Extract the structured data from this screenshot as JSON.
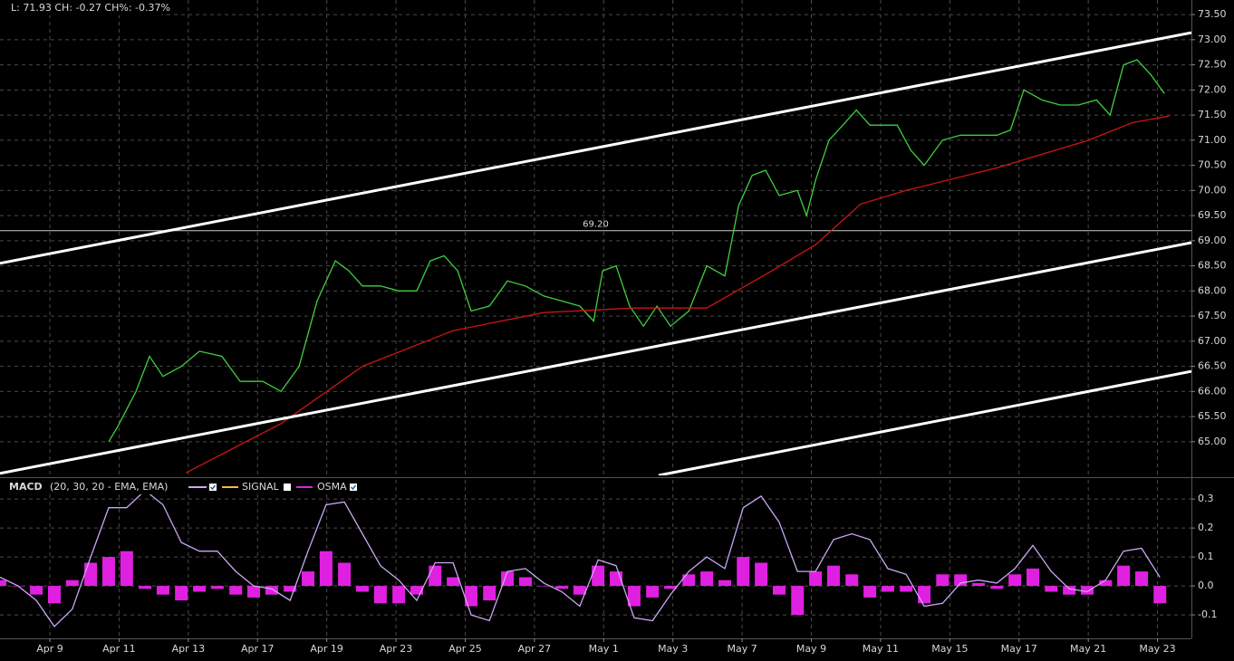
{
  "chart_data": [
    {
      "type": "line",
      "title": "L: 71.93 CH: -0.27 CH%: -0.37%",
      "xlim": [
        -1.44,
        32.98
      ],
      "ylim": [
        64.33,
        73.79
      ],
      "yticks": [
        {
          "value": 65,
          "label": "65.00"
        },
        {
          "value": 65.5,
          "label": "65.50"
        },
        {
          "value": 66,
          "label": "66.00"
        },
        {
          "value": 66.5,
          "label": "66.50"
        },
        {
          "value": 67,
          "label": "67.00"
        },
        {
          "value": 67.5,
          "label": "67.50"
        },
        {
          "value": 68,
          "label": "68.00"
        },
        {
          "value": 68.5,
          "label": "68.50"
        },
        {
          "value": 69,
          "label": "69.00"
        },
        {
          "value": 69.5,
          "label": "69.50"
        },
        {
          "value": 70,
          "label": "70.00"
        },
        {
          "value": 70.5,
          "label": "70.50"
        },
        {
          "value": 71,
          "label": "71.00"
        },
        {
          "value": 71.5,
          "label": "71.50"
        },
        {
          "value": 72,
          "label": "72.00"
        },
        {
          "value": 72.5,
          "label": "72.50"
        },
        {
          "value": 73,
          "label": "73.00"
        },
        {
          "value": 73.5,
          "label": "73.50"
        }
      ],
      "grid": true,
      "hlines": [
        {
          "value": 69.2,
          "label": "69.20",
          "color": "#cccccc"
        }
      ],
      "series": [
        {
          "kind": "line",
          "color": "#3fcf3f",
          "x": [
            1.7,
            1.96,
            2.49,
            2.88,
            3.27,
            3.8,
            4.32,
            4.97,
            5.5,
            6.15,
            6.68,
            7.2,
            7.72,
            8.25,
            8.64,
            9.03,
            9.55,
            10.08,
            10.6,
            10.99,
            11.39,
            11.78,
            12.17,
            12.7,
            13.22,
            13.74,
            14.27,
            14.79,
            15.31,
            15.71,
            15.97,
            16.36,
            16.75,
            17.15,
            17.54,
            17.93,
            18.46,
            18.98,
            19.5,
            19.9,
            20.29,
            20.68,
            21.07,
            21.6,
            21.86,
            22.12,
            22.51,
            22.91,
            23.3,
            23.69,
            24.08,
            24.48,
            24.87,
            25.26,
            25.79,
            26.31,
            26.83,
            27.36,
            27.75,
            28.14,
            28.66,
            29.19,
            29.71,
            30.24,
            30.63,
            31.02,
            31.41,
            31.81,
            32.2
          ],
          "values": [
            65.0,
            65.3,
            66.0,
            66.7,
            66.3,
            66.5,
            66.8,
            66.7,
            66.2,
            66.2,
            66.0,
            66.5,
            67.8,
            68.6,
            68.4,
            68.1,
            68.1,
            68.0,
            68.0,
            68.6,
            68.7,
            68.4,
            67.6,
            67.7,
            68.2,
            68.1,
            67.9,
            67.8,
            67.7,
            67.4,
            68.4,
            68.5,
            67.7,
            67.3,
            67.7,
            67.3,
            67.6,
            68.5,
            68.3,
            69.7,
            70.3,
            70.4,
            69.9,
            70.0,
            69.5,
            70.2,
            71.0,
            71.3,
            71.6,
            71.3,
            71.3,
            71.3,
            70.8,
            70.5,
            71.0,
            71.1,
            71.1,
            71.1,
            71.2,
            72.0,
            71.8,
            71.7,
            71.7,
            71.8,
            71.5,
            72.5,
            72.6,
            72.3,
            71.93
          ]
        },
        {
          "kind": "line",
          "color": "#d01414",
          "x": [
            3.93,
            6.68,
            9.03,
            11.65,
            14.27,
            16.88,
            18.98,
            20.81,
            22.12,
            23.43,
            24.74,
            27.36,
            28.66,
            29.97,
            31.28,
            32.33
          ],
          "values": [
            64.38,
            65.36,
            66.5,
            67.21,
            67.57,
            67.66,
            67.66,
            68.38,
            68.92,
            69.73,
            70.0,
            70.45,
            70.72,
            70.99,
            71.35,
            71.48
          ]
        },
        {
          "kind": "channel",
          "color": "#ffffff",
          "x": [
            -1.44,
            32.98
          ],
          "values": [
            68.55,
            73.14
          ]
        },
        {
          "kind": "channel",
          "color": "#ffffff",
          "x": [
            -1.44,
            32.98
          ],
          "values": [
            64.37,
            68.96
          ]
        },
        {
          "kind": "channel",
          "color": "#ffffff",
          "x": [
            17.59,
            32.98
          ],
          "values": [
            64.33,
            66.4
          ]
        }
      ]
    },
    {
      "type": "line",
      "title": "MACD",
      "subtitle": "(20, 30, 20 - EMA, EMA)",
      "xlim": [
        -1.44,
        32.98
      ],
      "ylim": [
        -0.181,
        0.366
      ],
      "xticks": [
        {
          "value": 0,
          "label": "Apr 9"
        },
        {
          "value": 2,
          "label": "Apr 11"
        },
        {
          "value": 4,
          "label": "Apr 13"
        },
        {
          "value": 6,
          "label": "Apr 17"
        },
        {
          "value": 8,
          "label": "Apr 19"
        },
        {
          "value": 10,
          "label": "Apr 23"
        },
        {
          "value": 12,
          "label": "Apr 25"
        },
        {
          "value": 14,
          "label": "Apr 27"
        },
        {
          "value": 16,
          "label": "May 1"
        },
        {
          "value": 18,
          "label": "May 3"
        },
        {
          "value": 20,
          "label": "May 7"
        },
        {
          "value": 22,
          "label": "May 9"
        },
        {
          "value": 24,
          "label": "May 11"
        },
        {
          "value": 26,
          "label": "May 15"
        },
        {
          "value": 28,
          "label": "May 17"
        },
        {
          "value": 30,
          "label": "May 21"
        },
        {
          "value": 32,
          "label": "May 23"
        }
      ],
      "yticks": [
        0.3,
        0.2,
        0.1,
        {
          "value": 0,
          "label": "0.0"
        },
        -0.1
      ],
      "grid": true,
      "hidden_series": [
        {
          "name": "SIGNAL",
          "color": "#f5b942"
        }
      ],
      "series": [
        {
          "name": "OSMA",
          "kind": "bar",
          "color": "#e020e0",
          "x": [
            -1.44,
            -0.92,
            -0.39,
            0.13,
            0.65,
            1.18,
            1.7,
            2.22,
            2.75,
            3.27,
            3.8,
            4.32,
            4.84,
            5.37,
            5.89,
            6.41,
            6.94,
            7.46,
            7.98,
            8.51,
            9.03,
            9.55,
            10.08,
            10.6,
            11.13,
            11.65,
            12.17,
            12.7,
            13.22,
            13.74,
            14.27,
            14.79,
            15.31,
            15.84,
            16.36,
            16.88,
            17.41,
            17.93,
            18.46,
            18.98,
            19.5,
            20.03,
            20.55,
            21.07,
            21.6,
            22.12,
            22.64,
            23.17,
            23.69,
            24.21,
            24.74,
            25.26,
            25.79,
            26.31,
            26.83,
            27.36,
            27.88,
            28.4,
            28.93,
            29.45,
            29.97,
            30.5,
            31.02,
            31.54,
            32.07
          ],
          "values": [
            0.02,
            0.0,
            -0.03,
            -0.06,
            0.02,
            0.08,
            0.1,
            0.12,
            -0.01,
            -0.03,
            -0.05,
            -0.02,
            -0.01,
            -0.03,
            -0.04,
            -0.03,
            -0.02,
            0.05,
            0.12,
            0.08,
            -0.02,
            -0.06,
            -0.06,
            -0.03,
            0.07,
            0.03,
            -0.07,
            -0.05,
            0.05,
            0.03,
            0.0,
            -0.01,
            -0.03,
            0.07,
            0.05,
            -0.07,
            -0.04,
            -0.01,
            0.04,
            0.05,
            0.02,
            0.1,
            0.08,
            -0.03,
            -0.1,
            0.05,
            0.07,
            0.04,
            -0.04,
            -0.02,
            -0.02,
            -0.06,
            0.04,
            0.04,
            0.01,
            -0.01,
            0.04,
            0.06,
            -0.02,
            -0.03,
            -0.03,
            0.02,
            0.07,
            0.05,
            -0.06
          ]
        },
        {
          "kind": "line",
          "color": "#c9a8f0",
          "x": [
            -1.44,
            -0.92,
            -0.39,
            0.13,
            0.65,
            1.18,
            1.7,
            2.22,
            2.75,
            3.27,
            3.8,
            4.32,
            4.84,
            5.37,
            5.89,
            6.41,
            6.94,
            7.46,
            7.98,
            8.51,
            9.03,
            9.55,
            10.08,
            10.6,
            11.13,
            11.65,
            12.17,
            12.7,
            13.22,
            13.74,
            14.27,
            14.79,
            15.31,
            15.84,
            16.36,
            16.88,
            17.41,
            17.93,
            18.46,
            18.98,
            19.5,
            20.03,
            20.55,
            21.07,
            21.6,
            22.12,
            22.64,
            23.17,
            23.69,
            24.21,
            24.74,
            25.26,
            25.79,
            26.31,
            26.83,
            27.36,
            27.88,
            28.4,
            28.93,
            29.45,
            29.97,
            30.5,
            31.02,
            31.54,
            32.07
          ],
          "values": [
            0.03,
            0.0,
            -0.05,
            -0.14,
            -0.08,
            0.1,
            0.27,
            0.27,
            0.33,
            0.28,
            0.15,
            0.12,
            0.12,
            0.05,
            0.0,
            -0.01,
            -0.05,
            0.12,
            0.28,
            0.29,
            0.18,
            0.07,
            0.02,
            -0.05,
            0.08,
            0.08,
            -0.1,
            -0.12,
            0.05,
            0.06,
            0.01,
            -0.02,
            -0.07,
            0.09,
            0.07,
            -0.11,
            -0.12,
            -0.03,
            0.05,
            0.1,
            0.06,
            0.27,
            0.31,
            0.22,
            0.05,
            0.05,
            0.16,
            0.18,
            0.16,
            0.06,
            0.04,
            -0.07,
            -0.06,
            0.01,
            0.02,
            0.01,
            0.06,
            0.14,
            0.05,
            -0.01,
            -0.02,
            0.02,
            0.12,
            0.13,
            0.03
          ]
        }
      ]
    }
  ]
}
